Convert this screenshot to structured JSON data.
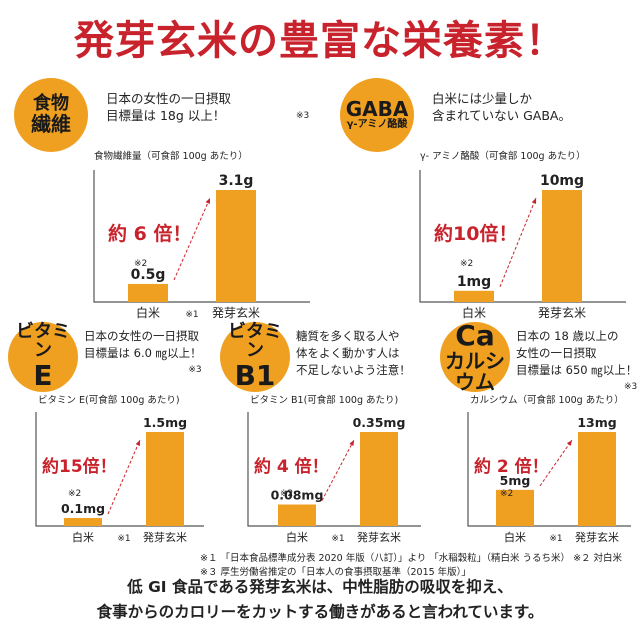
{
  "title": "発芽玄米の豊富な栄養素！",
  "panels": [
    {
      "badge_lines": [
        "食物",
        "繊維"
      ],
      "intro_lines": [
        "日本の女性の一日摂取",
        "目標量は 18g 以上！"
      ],
      "intro_note": "※3",
      "chart_label": "食物繊維量（可食部 100g あたり）",
      "ratio_label": "約 6 倍！",
      "arrow_note": "※2",
      "value_labels": [
        "0.5g",
        "3.1g"
      ],
      "cat_note": "※1"
    },
    {
      "badge_lines": [
        "GABA",
        "γ-アミノ酪酸"
      ],
      "intro_lines": [
        "白米には少量しか",
        "含まれていない GABA。"
      ],
      "intro_note": "",
      "chart_label": "γ- アミノ酪酸（可食部 100g あたり）",
      "ratio_label": "約10倍！",
      "arrow_note": "※2",
      "value_labels": [
        "1mg",
        "10mg"
      ],
      "cat_note": ""
    },
    {
      "badge_lines": [
        "ビタミン",
        "E"
      ],
      "intro_lines": [
        "日本の女性の一日摂取",
        "目標量は 6.0 ㎎以上！"
      ],
      "intro_note": "※3",
      "chart_label": "ビタミン E(可食部 100g あたり)",
      "ratio_label": "約15倍！",
      "arrow_note": "※2",
      "value_labels": [
        "0.1mg",
        "1.5mg"
      ],
      "cat_note": "※1"
    },
    {
      "badge_lines": [
        "ビタミン",
        "B1"
      ],
      "intro_lines": [
        "糖質を多く取る人や",
        "体をよく動かす人は",
        "不足しないよう注意！"
      ],
      "intro_note": "",
      "chart_label": "ビタミン B1(可食部 100g あたり)",
      "ratio_label": "約 4 倍！",
      "arrow_note": "※2",
      "value_labels": [
        "0.08mg",
        "0.35mg"
      ],
      "cat_note": "※1"
    },
    {
      "badge_lines": [
        "Ca",
        "カルシウム"
      ],
      "intro_lines": [
        "日本の 18 歳以上の",
        "女性の一日摂取",
        "目標量は 650 ㎎以上！"
      ],
      "intro_note": "※3",
      "chart_label": "カルシウム（可食部 100g あたり）",
      "ratio_label": "約 2 倍！",
      "arrow_note": "※2",
      "value_labels": [
        "5mg",
        "13mg"
      ],
      "cat_note": "※1"
    }
  ],
  "chart_data": [
    {
      "type": "bar",
      "title": "食物繊維量（可食部 100g あたり）",
      "categories": [
        "白米",
        "発芽玄米"
      ],
      "values": [
        0.5,
        3.1
      ],
      "unit": "g"
    },
    {
      "type": "bar",
      "title": "γ- アミノ酪酸（可食部 100g あたり）",
      "categories": [
        "白米",
        "発芽玄米"
      ],
      "values": [
        1,
        10
      ],
      "unit": "mg"
    },
    {
      "type": "bar",
      "title": "ビタミン E(可食部 100g あたり)",
      "categories": [
        "白米",
        "発芽玄米"
      ],
      "values": [
        0.1,
        1.5
      ],
      "unit": "mg"
    },
    {
      "type": "bar",
      "title": "ビタミン B1(可食部 100g あたり)",
      "categories": [
        "白米",
        "発芽玄米"
      ],
      "values": [
        0.08,
        0.35
      ],
      "unit": "mg"
    },
    {
      "type": "bar",
      "title": "カルシウム（可食部 100g あたり）",
      "categories": [
        "白米",
        "発芽玄米"
      ],
      "values": [
        5,
        13
      ],
      "unit": "mg"
    }
  ],
  "footnotes": [
    "※１ 「日本食品標準成分表 2020 年版（八訂）」より 「水稲穀粒」（精白米 うるち米） ※２ 対白米",
    "※３ 厚生労働省推定の「日本人の食事摂取基準（2015 年版）」"
  ],
  "bottom_lines": [
    "低 GI 食品である発芽玄米は、中性脂肪の吸収を抑え、",
    "食事からのカロリーをカットする働きがあると言われています。"
  ],
  "colors": {
    "title": "#c8232c",
    "badge": "#f0a020",
    "bar": "#f0a020",
    "ratio": "#c8232c",
    "axis": "#555555"
  }
}
